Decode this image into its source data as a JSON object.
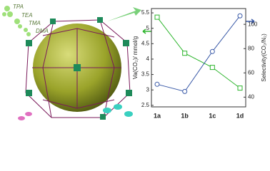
{
  "illustration": {
    "labels": [
      "TPA",
      "TEA",
      "TMA",
      "DMA"
    ]
  },
  "chart_data": {
    "type": "line",
    "categories": [
      "1a",
      "1b",
      "1c",
      "1d"
    ],
    "y_label": "Va(CO₂)/ mmol/g",
    "y2_label": "Selectivity(CO₂/N₂)",
    "ylim": [
      2.45,
      5.64
    ],
    "yticks": [
      2.5,
      3.0,
      3.5,
      4.0,
      4.5,
      5.0,
      5.5
    ],
    "y2lim": [
      32,
      113
    ],
    "y2ticks": [
      40,
      60,
      80,
      100
    ],
    "series": [
      {
        "color": "#2db52d",
        "marker": "square",
        "values": [
          5.36,
          4.19,
          3.73,
          3.06
        ]
      },
      {
        "color": "#3a5aa8",
        "marker": "circle",
        "axis": "y2",
        "values": [
          50.6,
          44.7,
          77.6,
          107
        ]
      }
    ]
  }
}
